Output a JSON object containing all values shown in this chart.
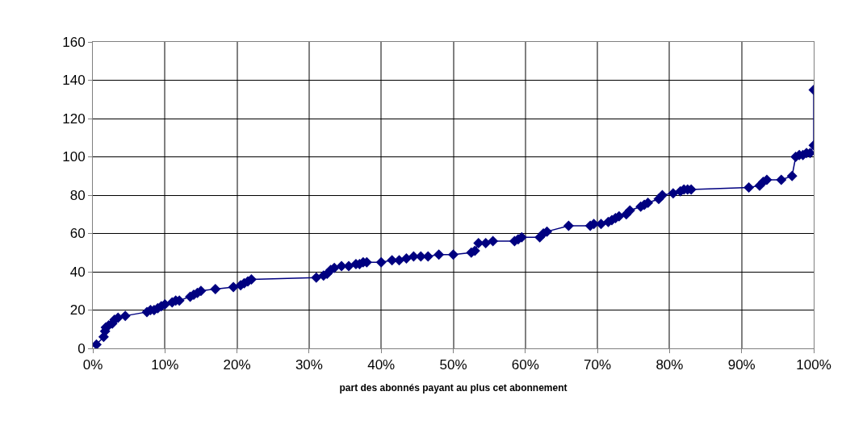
{
  "chart_data": {
    "type": "line",
    "xlabel": "part des abonnés payant au plus cet abonnement",
    "x": [
      0.5,
      1.5,
      1.7,
      1.8,
      2.2,
      2.7,
      3.0,
      3.5,
      4.5,
      7.5,
      8,
      8.5,
      9,
      9.5,
      10,
      11,
      11.5,
      12,
      13.5,
      14,
      14.5,
      15,
      17,
      19.5,
      20.5,
      21,
      21.5,
      22,
      31,
      32,
      32.5,
      33,
      33.5,
      34.5,
      35.5,
      36.5,
      37,
      37.5,
      38,
      40,
      41.5,
      42.5,
      43.5,
      44.5,
      45.5,
      46.5,
      48,
      50,
      52.5,
      53,
      53.5,
      54.5,
      55.5,
      58.5,
      59,
      59.5,
      62,
      62.5,
      63,
      66,
      69,
      69.5,
      70.5,
      71.5,
      72,
      72.5,
      73,
      74,
      74.5,
      76,
      76.5,
      77,
      78.5,
      79,
      80.5,
      81.5,
      82,
      82.5,
      83,
      91,
      92.5,
      93,
      93.5,
      95.5,
      97,
      97.5,
      98,
      98.5,
      99,
      99.5,
      100,
      100
    ],
    "series": [
      {
        "color": "#000080",
        "values": [
          2,
          6,
          9,
          11,
          12,
          13,
          15,
          16,
          17,
          19,
          20,
          20,
          21,
          22,
          23,
          24,
          25,
          25,
          27,
          28,
          29,
          30,
          31,
          32,
          33,
          34,
          35,
          36,
          37,
          38,
          39,
          41,
          42,
          43,
          43,
          44,
          44,
          45,
          45,
          45,
          46,
          46,
          47,
          48,
          48,
          48,
          49,
          49,
          50,
          51,
          55,
          55,
          56,
          56,
          57,
          58,
          58,
          60,
          61,
          64,
          64,
          65,
          65,
          66,
          67,
          68,
          69,
          70,
          72,
          74,
          75,
          76,
          78,
          80,
          81,
          82,
          83,
          83,
          83,
          84,
          85,
          87,
          88,
          88,
          90,
          100,
          101,
          101,
          102,
          102,
          106,
          135
        ]
      }
    ],
    "xlim": [
      0,
      100
    ],
    "ylim": [
      0,
      160
    ],
    "xticks": [
      {
        "value": 0,
        "label": "0%"
      },
      {
        "value": 10,
        "label": "10%"
      },
      {
        "value": 20,
        "label": "20%"
      },
      {
        "value": 30,
        "label": "30%"
      },
      {
        "value": 40,
        "label": "40%"
      },
      {
        "value": 50,
        "label": "50%"
      },
      {
        "value": 60,
        "label": "60%"
      },
      {
        "value": 70,
        "label": "70%"
      },
      {
        "value": 80,
        "label": "80%"
      },
      {
        "value": 90,
        "label": "90%"
      },
      {
        "value": 100,
        "label": "100%"
      }
    ],
    "yticks": [
      0,
      20,
      40,
      60,
      80,
      100,
      120,
      140,
      160
    ],
    "grid": true,
    "marker": "diamond",
    "line_style": "solid"
  }
}
